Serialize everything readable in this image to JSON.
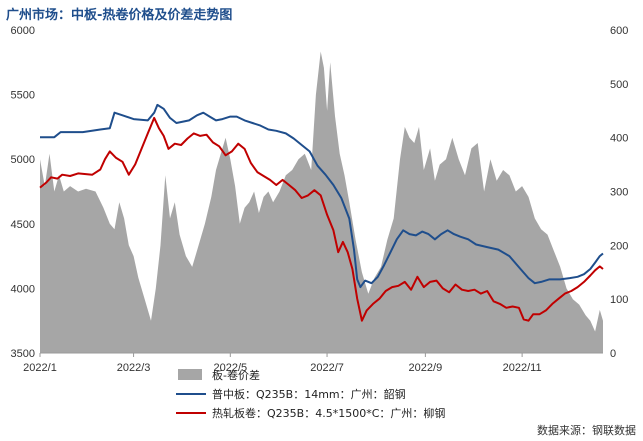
{
  "chart_data": {
    "type": "line",
    "title": "广州市场：中板-热卷价格及价差走势图",
    "x_tick_labels": [
      "2022/1",
      "2022/3",
      "2022/5",
      "2022/7",
      "2022/9",
      "2022/11"
    ],
    "x_tick_dates": [
      "2022-01-01",
      "2022-03-01",
      "2022-05-01",
      "2022-07-01",
      "2022-09-01",
      "2022-11-01"
    ],
    "x_range": [
      "2022-01-01",
      "2022-12-22"
    ],
    "y_left": {
      "range": [
        3500,
        6000
      ],
      "ticks": [
        3500,
        4000,
        4500,
        5000,
        5500,
        6000
      ]
    },
    "y_right": {
      "range": [
        0,
        600
      ],
      "ticks": [
        0,
        100,
        200,
        300,
        400,
        500,
        600
      ]
    },
    "legend_position": "bottom-left",
    "grid": false,
    "source": "数据来源：钢联数据",
    "series": [
      {
        "name": "板-卷价差",
        "type": "area",
        "axis": "right",
        "color": "#a6a6a6",
        "points": [
          [
            "2022-01-01",
            360
          ],
          [
            "2022-01-04",
            310
          ],
          [
            "2022-01-07",
            370
          ],
          [
            "2022-01-10",
            300
          ],
          [
            "2022-01-13",
            330
          ],
          [
            "2022-01-16",
            300
          ],
          [
            "2022-01-20",
            310
          ],
          [
            "2022-01-25",
            300
          ],
          [
            "2022-01-30",
            305
          ],
          [
            "2022-02-05",
            300
          ],
          [
            "2022-02-10",
            270
          ],
          [
            "2022-02-14",
            240
          ],
          [
            "2022-02-17",
            230
          ],
          [
            "2022-02-20",
            280
          ],
          [
            "2022-02-23",
            250
          ],
          [
            "2022-02-26",
            200
          ],
          [
            "2022-03-01",
            180
          ],
          [
            "2022-03-04",
            140
          ],
          [
            "2022-03-08",
            100
          ],
          [
            "2022-03-12",
            60
          ],
          [
            "2022-03-15",
            120
          ],
          [
            "2022-03-18",
            200
          ],
          [
            "2022-03-21",
            330
          ],
          [
            "2022-03-24",
            250
          ],
          [
            "2022-03-27",
            280
          ],
          [
            "2022-03-30",
            220
          ],
          [
            "2022-04-03",
            180
          ],
          [
            "2022-04-07",
            160
          ],
          [
            "2022-04-11",
            200
          ],
          [
            "2022-04-15",
            240
          ],
          [
            "2022-04-19",
            290
          ],
          [
            "2022-04-22",
            340
          ],
          [
            "2022-04-25",
            370
          ],
          [
            "2022-04-28",
            400
          ],
          [
            "2022-05-01",
            360
          ],
          [
            "2022-05-04",
            310
          ],
          [
            "2022-05-07",
            240
          ],
          [
            "2022-05-10",
            270
          ],
          [
            "2022-05-13",
            280
          ],
          [
            "2022-05-16",
            300
          ],
          [
            "2022-05-19",
            260
          ],
          [
            "2022-05-22",
            290
          ],
          [
            "2022-05-25",
            300
          ],
          [
            "2022-05-28",
            280
          ],
          [
            "2022-06-01",
            300
          ],
          [
            "2022-06-05",
            330
          ],
          [
            "2022-06-09",
            340
          ],
          [
            "2022-06-13",
            360
          ],
          [
            "2022-06-17",
            370
          ],
          [
            "2022-06-21",
            340
          ],
          [
            "2022-06-24",
            480
          ],
          [
            "2022-06-27",
            560
          ],
          [
            "2022-06-29",
            530
          ],
          [
            "2022-07-01",
            450
          ],
          [
            "2022-07-03",
            540
          ],
          [
            "2022-07-06",
            440
          ],
          [
            "2022-07-09",
            370
          ],
          [
            "2022-07-12",
            330
          ],
          [
            "2022-07-15",
            280
          ],
          [
            "2022-07-19",
            210
          ],
          [
            "2022-07-23",
            150
          ],
          [
            "2022-07-27",
            110
          ],
          [
            "2022-07-31",
            140
          ],
          [
            "2022-08-04",
            160
          ],
          [
            "2022-08-08",
            210
          ],
          [
            "2022-08-12",
            250
          ],
          [
            "2022-08-16",
            360
          ],
          [
            "2022-08-19",
            420
          ],
          [
            "2022-08-22",
            400
          ],
          [
            "2022-08-25",
            390
          ],
          [
            "2022-08-28",
            420
          ],
          [
            "2022-08-31",
            340
          ],
          [
            "2022-09-04",
            380
          ],
          [
            "2022-09-07",
            320
          ],
          [
            "2022-09-10",
            350
          ],
          [
            "2022-09-14",
            360
          ],
          [
            "2022-09-18",
            400
          ],
          [
            "2022-09-22",
            360
          ],
          [
            "2022-09-26",
            330
          ],
          [
            "2022-09-30",
            380
          ],
          [
            "2022-10-04",
            390
          ],
          [
            "2022-10-08",
            300
          ],
          [
            "2022-10-12",
            360
          ],
          [
            "2022-10-16",
            320
          ],
          [
            "2022-10-20",
            340
          ],
          [
            "2022-10-24",
            330
          ],
          [
            "2022-10-28",
            300
          ],
          [
            "2022-11-01",
            310
          ],
          [
            "2022-11-05",
            290
          ],
          [
            "2022-11-09",
            250
          ],
          [
            "2022-11-13",
            230
          ],
          [
            "2022-11-17",
            220
          ],
          [
            "2022-11-21",
            190
          ],
          [
            "2022-11-25",
            160
          ],
          [
            "2022-11-29",
            120
          ],
          [
            "2022-12-03",
            100
          ],
          [
            "2022-12-07",
            90
          ],
          [
            "2022-12-11",
            70
          ],
          [
            "2022-12-14",
            60
          ],
          [
            "2022-12-17",
            40
          ],
          [
            "2022-12-20",
            80
          ],
          [
            "2022-12-22",
            60
          ]
        ]
      },
      {
        "name": "普中板：Q235B：14mm：广州：韶钢",
        "type": "line",
        "axis": "left",
        "color": "#1f4e8c",
        "points": [
          [
            "2022-01-01",
            5170
          ],
          [
            "2022-01-10",
            5170
          ],
          [
            "2022-01-14",
            5210
          ],
          [
            "2022-01-28",
            5210
          ],
          [
            "2022-02-08",
            5230
          ],
          [
            "2022-02-14",
            5240
          ],
          [
            "2022-02-17",
            5360
          ],
          [
            "2022-02-22",
            5340
          ],
          [
            "2022-03-01",
            5310
          ],
          [
            "2022-03-10",
            5300
          ],
          [
            "2022-03-14",
            5360
          ],
          [
            "2022-03-16",
            5420
          ],
          [
            "2022-03-20",
            5390
          ],
          [
            "2022-03-24",
            5320
          ],
          [
            "2022-03-28",
            5280
          ],
          [
            "2022-04-05",
            5300
          ],
          [
            "2022-04-10",
            5340
          ],
          [
            "2022-04-14",
            5360
          ],
          [
            "2022-04-18",
            5330
          ],
          [
            "2022-04-22",
            5300
          ],
          [
            "2022-04-26",
            5310
          ],
          [
            "2022-05-01",
            5330
          ],
          [
            "2022-05-05",
            5330
          ],
          [
            "2022-05-10",
            5300
          ],
          [
            "2022-05-15",
            5280
          ],
          [
            "2022-05-20",
            5260
          ],
          [
            "2022-05-25",
            5230
          ],
          [
            "2022-05-30",
            5220
          ],
          [
            "2022-06-05",
            5200
          ],
          [
            "2022-06-10",
            5160
          ],
          [
            "2022-06-15",
            5110
          ],
          [
            "2022-06-20",
            5060
          ],
          [
            "2022-06-25",
            4950
          ],
          [
            "2022-06-30",
            4880
          ],
          [
            "2022-07-05",
            4800
          ],
          [
            "2022-07-10",
            4700
          ],
          [
            "2022-07-15",
            4540
          ],
          [
            "2022-07-18",
            4300
          ],
          [
            "2022-07-20",
            4070
          ],
          [
            "2022-07-22",
            4010
          ],
          [
            "2022-07-25",
            4060
          ],
          [
            "2022-07-29",
            4040
          ],
          [
            "2022-08-02",
            4090
          ],
          [
            "2022-08-06",
            4180
          ],
          [
            "2022-08-10",
            4280
          ],
          [
            "2022-08-14",
            4380
          ],
          [
            "2022-08-18",
            4450
          ],
          [
            "2022-08-22",
            4420
          ],
          [
            "2022-08-26",
            4410
          ],
          [
            "2022-08-30",
            4440
          ],
          [
            "2022-09-03",
            4420
          ],
          [
            "2022-09-07",
            4380
          ],
          [
            "2022-09-11",
            4420
          ],
          [
            "2022-09-15",
            4450
          ],
          [
            "2022-09-19",
            4420
          ],
          [
            "2022-09-23",
            4400
          ],
          [
            "2022-09-28",
            4380
          ],
          [
            "2022-10-03",
            4340
          ],
          [
            "2022-10-10",
            4320
          ],
          [
            "2022-10-17",
            4300
          ],
          [
            "2022-10-24",
            4250
          ],
          [
            "2022-10-31",
            4150
          ],
          [
            "2022-11-05",
            4080
          ],
          [
            "2022-11-09",
            4040
          ],
          [
            "2022-11-13",
            4050
          ],
          [
            "2022-11-18",
            4070
          ],
          [
            "2022-11-25",
            4070
          ],
          [
            "2022-12-01",
            4080
          ],
          [
            "2022-12-06",
            4090
          ],
          [
            "2022-12-10",
            4110
          ],
          [
            "2022-12-14",
            4150
          ],
          [
            "2022-12-17",
            4200
          ],
          [
            "2022-12-20",
            4250
          ],
          [
            "2022-12-22",
            4270
          ]
        ]
      },
      {
        "name": "热轧板卷：Q235B：4.5*1500*C：广州：柳钢",
        "type": "line",
        "axis": "left",
        "color": "#c00000",
        "points": [
          [
            "2022-01-01",
            4780
          ],
          [
            "2022-01-05",
            4820
          ],
          [
            "2022-01-08",
            4860
          ],
          [
            "2022-01-12",
            4850
          ],
          [
            "2022-01-15",
            4880
          ],
          [
            "2022-01-20",
            4870
          ],
          [
            "2022-01-25",
            4890
          ],
          [
            "2022-02-03",
            4880
          ],
          [
            "2022-02-08",
            4920
          ],
          [
            "2022-02-11",
            5000
          ],
          [
            "2022-02-14",
            5060
          ],
          [
            "2022-02-18",
            5010
          ],
          [
            "2022-02-22",
            4980
          ],
          [
            "2022-02-26",
            4880
          ],
          [
            "2022-03-02",
            4960
          ],
          [
            "2022-03-06",
            5080
          ],
          [
            "2022-03-10",
            5200
          ],
          [
            "2022-03-14",
            5320
          ],
          [
            "2022-03-17",
            5240
          ],
          [
            "2022-03-20",
            5180
          ],
          [
            "2022-03-23",
            5080
          ],
          [
            "2022-03-27",
            5120
          ],
          [
            "2022-03-31",
            5110
          ],
          [
            "2022-04-04",
            5160
          ],
          [
            "2022-04-08",
            5200
          ],
          [
            "2022-04-12",
            5180
          ],
          [
            "2022-04-16",
            5190
          ],
          [
            "2022-04-20",
            5130
          ],
          [
            "2022-04-24",
            5100
          ],
          [
            "2022-04-28",
            5030
          ],
          [
            "2022-05-02",
            5060
          ],
          [
            "2022-05-06",
            5120
          ],
          [
            "2022-05-10",
            5080
          ],
          [
            "2022-05-14",
            4970
          ],
          [
            "2022-05-18",
            4900
          ],
          [
            "2022-05-22",
            4870
          ],
          [
            "2022-05-26",
            4840
          ],
          [
            "2022-05-30",
            4800
          ],
          [
            "2022-06-03",
            4840
          ],
          [
            "2022-06-07",
            4800
          ],
          [
            "2022-06-11",
            4760
          ],
          [
            "2022-06-15",
            4700
          ],
          [
            "2022-06-19",
            4720
          ],
          [
            "2022-06-23",
            4760
          ],
          [
            "2022-06-27",
            4720
          ],
          [
            "2022-07-01",
            4570
          ],
          [
            "2022-07-05",
            4450
          ],
          [
            "2022-07-08",
            4280
          ],
          [
            "2022-07-11",
            4360
          ],
          [
            "2022-07-14",
            4280
          ],
          [
            "2022-07-17",
            4150
          ],
          [
            "2022-07-20",
            3920
          ],
          [
            "2022-07-23",
            3750
          ],
          [
            "2022-07-26",
            3830
          ],
          [
            "2022-07-30",
            3880
          ],
          [
            "2022-08-03",
            3920
          ],
          [
            "2022-08-07",
            3980
          ],
          [
            "2022-08-11",
            4010
          ],
          [
            "2022-08-15",
            4020
          ],
          [
            "2022-08-19",
            4050
          ],
          [
            "2022-08-23",
            3990
          ],
          [
            "2022-08-27",
            4090
          ],
          [
            "2022-08-31",
            4010
          ],
          [
            "2022-09-04",
            4050
          ],
          [
            "2022-09-08",
            4060
          ],
          [
            "2022-09-12",
            4000
          ],
          [
            "2022-09-16",
            3970
          ],
          [
            "2022-09-20",
            4030
          ],
          [
            "2022-09-24",
            3990
          ],
          [
            "2022-09-28",
            3980
          ],
          [
            "2022-10-02",
            3990
          ],
          [
            "2022-10-06",
            3960
          ],
          [
            "2022-10-10",
            3980
          ],
          [
            "2022-10-14",
            3900
          ],
          [
            "2022-10-18",
            3880
          ],
          [
            "2022-10-22",
            3850
          ],
          [
            "2022-10-26",
            3860
          ],
          [
            "2022-10-30",
            3850
          ],
          [
            "2022-11-02",
            3760
          ],
          [
            "2022-11-05",
            3750
          ],
          [
            "2022-11-08",
            3800
          ],
          [
            "2022-11-12",
            3800
          ],
          [
            "2022-11-16",
            3830
          ],
          [
            "2022-11-20",
            3880
          ],
          [
            "2022-11-24",
            3920
          ],
          [
            "2022-11-28",
            3960
          ],
          [
            "2022-12-02",
            3980
          ],
          [
            "2022-12-06",
            4010
          ],
          [
            "2022-12-10",
            4050
          ],
          [
            "2022-12-14",
            4100
          ],
          [
            "2022-12-17",
            4140
          ],
          [
            "2022-12-20",
            4170
          ],
          [
            "2022-12-22",
            4150
          ]
        ]
      }
    ]
  }
}
